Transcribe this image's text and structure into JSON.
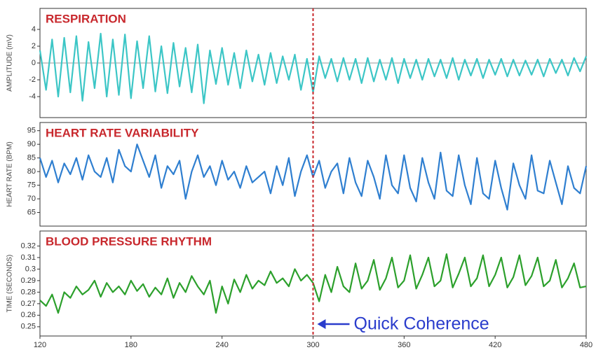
{
  "chart_data": [
    {
      "type": "line",
      "title": "RESPIRATION",
      "y_label": "AMPLITUDE (mV)",
      "zero_line": true,
      "x": [
        120,
        124,
        128,
        132,
        136,
        140,
        144,
        148,
        152,
        156,
        160,
        164,
        168,
        172,
        176,
        180,
        184,
        188,
        192,
        196,
        200,
        204,
        208,
        212,
        216,
        220,
        224,
        228,
        232,
        236,
        240,
        244,
        248,
        252,
        256,
        260,
        264,
        268,
        272,
        276,
        280,
        284,
        288,
        292,
        296,
        300,
        304,
        308,
        312,
        316,
        320,
        324,
        328,
        332,
        336,
        340,
        344,
        348,
        352,
        356,
        360,
        364,
        368,
        372,
        376,
        380,
        384,
        388,
        392,
        396,
        400,
        404,
        408,
        412,
        416,
        420,
        424,
        428,
        432,
        436,
        440,
        444,
        448,
        452,
        456,
        460,
        464,
        468,
        472,
        476,
        480
      ],
      "series": [
        {
          "color": "#3cc6c6",
          "values": [
            1.5,
            -3.2,
            2.8,
            -4,
            3,
            -3.5,
            3.2,
            -4.5,
            2.5,
            -3,
            3.5,
            -4,
            2.8,
            -3.8,
            3.4,
            -4.2,
            2.6,
            -3,
            3.2,
            -3.4,
            2,
            -3.6,
            2.4,
            -2.8,
            1.8,
            -3.5,
            2.2,
            -4.8,
            1.5,
            -2.5,
            1.8,
            -2.6,
            1.2,
            -3,
            1.5,
            -2.2,
            1,
            -2.6,
            1.2,
            -2.4,
            0.8,
            -2,
            1,
            -3.2,
            0.5,
            -3.5,
            0.8,
            -1.8,
            0.5,
            -2.2,
            0.6,
            -2,
            0.5,
            -2.4,
            0.6,
            -2.2,
            0.4,
            -2,
            0.6,
            -2.4,
            0.5,
            -1.8,
            0.4,
            -2,
            0.5,
            -1.6,
            0.4,
            -1.8,
            0.6,
            -2,
            0.4,
            -1.5,
            0.5,
            -1.8,
            0.4,
            -1.4,
            0.5,
            -1.6,
            0.4,
            -1.5,
            0.3,
            -1.4,
            0.4,
            -1.6,
            0.5,
            -1.2,
            0.4,
            -1.5,
            0.6,
            -1,
            0.8
          ]
        }
      ],
      "xlim": [
        120,
        480
      ],
      "ylim": [
        -6.5,
        6.5
      ],
      "yticks": [
        -4,
        -2,
        0,
        2,
        4
      ]
    },
    {
      "type": "line",
      "title": "HEART RATE VARIABILITY",
      "y_label": "HEART RATE (BPM)",
      "x": [
        120,
        124,
        128,
        132,
        136,
        140,
        144,
        148,
        152,
        156,
        160,
        164,
        168,
        172,
        176,
        180,
        184,
        188,
        192,
        196,
        200,
        204,
        208,
        212,
        216,
        220,
        224,
        228,
        232,
        236,
        240,
        244,
        248,
        252,
        256,
        260,
        264,
        268,
        272,
        276,
        280,
        284,
        288,
        292,
        296,
        300,
        304,
        308,
        312,
        316,
        320,
        324,
        328,
        332,
        336,
        340,
        344,
        348,
        352,
        356,
        360,
        364,
        368,
        372,
        376,
        380,
        384,
        388,
        392,
        396,
        400,
        404,
        408,
        412,
        416,
        420,
        424,
        428,
        432,
        436,
        440,
        444,
        448,
        452,
        456,
        460,
        464,
        468,
        472,
        476,
        480
      ],
      "series": [
        {
          "color": "#2f7fd0",
          "values": [
            85,
            78,
            84,
            76,
            83,
            79,
            85,
            77,
            86,
            80,
            78,
            85,
            76,
            88,
            82,
            80,
            90,
            84,
            78,
            86,
            74,
            82,
            79,
            84,
            70,
            80,
            86,
            78,
            82,
            75,
            84,
            77,
            80,
            74,
            82,
            76,
            78,
            80,
            72,
            82,
            75,
            85,
            71,
            80,
            86,
            78,
            84,
            74,
            80,
            83,
            72,
            85,
            76,
            71,
            84,
            78,
            70,
            86,
            75,
            72,
            86,
            74,
            69,
            85,
            76,
            70,
            87,
            73,
            71,
            86,
            75,
            68,
            85,
            72,
            70,
            84,
            74,
            66,
            83,
            75,
            70,
            86,
            73,
            72,
            84,
            76,
            68,
            82,
            74,
            72,
            82
          ]
        }
      ],
      "xlim": [
        120,
        480
      ],
      "ylim": [
        60,
        98
      ],
      "yticks": [
        65,
        70,
        75,
        80,
        85,
        90,
        95
      ]
    },
    {
      "type": "line",
      "title": "BLOOD PRESSURE RHYTHM",
      "y_label": "TIME (SECONDS)",
      "x": [
        120,
        124,
        128,
        132,
        136,
        140,
        144,
        148,
        152,
        156,
        160,
        164,
        168,
        172,
        176,
        180,
        184,
        188,
        192,
        196,
        200,
        204,
        208,
        212,
        216,
        220,
        224,
        228,
        232,
        236,
        240,
        244,
        248,
        252,
        256,
        260,
        264,
        268,
        272,
        276,
        280,
        284,
        288,
        292,
        296,
        300,
        304,
        308,
        312,
        316,
        320,
        324,
        328,
        332,
        336,
        340,
        344,
        348,
        352,
        356,
        360,
        364,
        368,
        372,
        376,
        380,
        384,
        388,
        392,
        396,
        400,
        404,
        408,
        412,
        416,
        420,
        424,
        428,
        432,
        436,
        440,
        444,
        448,
        452,
        456,
        460,
        464,
        468,
        472,
        476,
        480
      ],
      "series": [
        {
          "color": "#2ca02c",
          "values": [
            0.273,
            0.268,
            0.278,
            0.262,
            0.28,
            0.275,
            0.285,
            0.278,
            0.282,
            0.29,
            0.276,
            0.288,
            0.28,
            0.285,
            0.278,
            0.29,
            0.281,
            0.287,
            0.276,
            0.284,
            0.278,
            0.292,
            0.275,
            0.288,
            0.28,
            0.294,
            0.285,
            0.278,
            0.29,
            0.262,
            0.285,
            0.27,
            0.291,
            0.28,
            0.295,
            0.283,
            0.29,
            0.286,
            0.298,
            0.288,
            0.292,
            0.285,
            0.3,
            0.29,
            0.295,
            0.288,
            0.272,
            0.295,
            0.28,
            0.302,
            0.285,
            0.28,
            0.305,
            0.283,
            0.29,
            0.308,
            0.282,
            0.292,
            0.31,
            0.284,
            0.29,
            0.312,
            0.283,
            0.295,
            0.31,
            0.285,
            0.29,
            0.313,
            0.284,
            0.296,
            0.31,
            0.285,
            0.292,
            0.312,
            0.285,
            0.295,
            0.31,
            0.284,
            0.293,
            0.312,
            0.286,
            0.294,
            0.31,
            0.285,
            0.29,
            0.308,
            0.284,
            0.292,
            0.305,
            0.284,
            0.285
          ]
        }
      ],
      "xlim": [
        120,
        480
      ],
      "ylim": [
        0.242,
        0.333
      ],
      "yticks": [
        0.25,
        0.26,
        0.27,
        0.28,
        0.29,
        0.3,
        0.31,
        0.32
      ],
      "xticks": [
        120,
        180,
        240,
        300,
        360,
        420,
        480
      ]
    }
  ],
  "annotation": {
    "text": "Quick Coherence",
    "x": 300,
    "color": "#c8282d",
    "text_color": "#2a3ccc"
  }
}
